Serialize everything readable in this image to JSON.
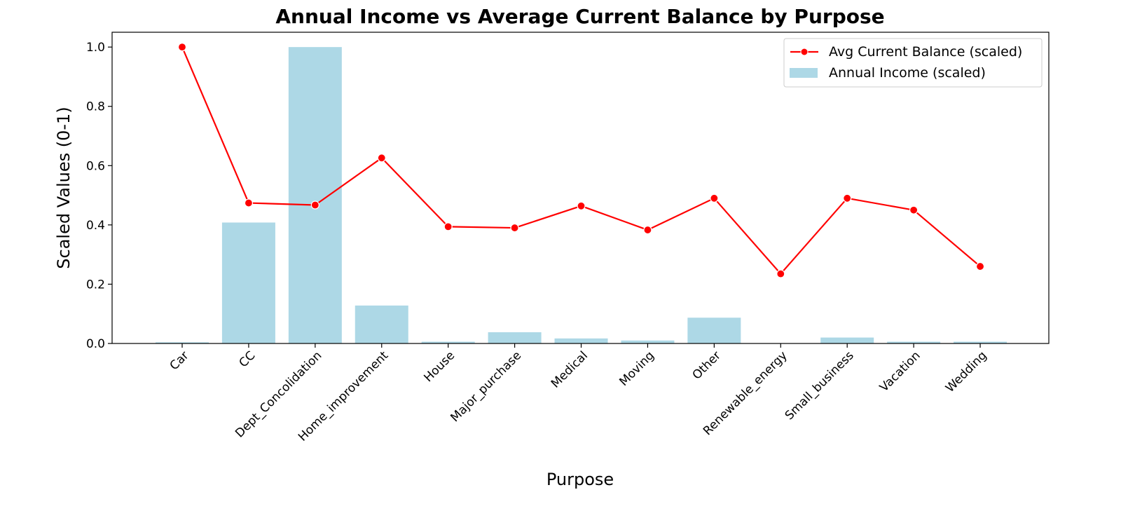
{
  "chart_data": {
    "type": "bar",
    "title": "Annual Income vs Average Current Balance by Purpose",
    "xlabel": "Purpose",
    "ylabel": "Scaled Values (0-1)",
    "ylim": [
      0,
      1.05
    ],
    "yticks": [
      "0.0",
      "0.2",
      "0.4",
      "0.6",
      "0.8",
      "1.0"
    ],
    "ytick_values": [
      0,
      0.2,
      0.4,
      0.6,
      0.8,
      1.0
    ],
    "grid": false,
    "legend_position": "top-right",
    "categories": [
      "Car",
      "CC",
      "Dept_Concolidation",
      "Home_improvement",
      "House",
      "Major_purchase",
      "Medical",
      "Moving",
      "Other",
      "Renewable_energy",
      "Small_business",
      "Vacation",
      "Wedding"
    ],
    "series": [
      {
        "name": "Avg Current Balance (scaled)",
        "type": "line",
        "color": "#ff0000",
        "values": [
          1.0,
          0.474,
          0.467,
          0.626,
          0.394,
          0.39,
          0.464,
          0.383,
          0.49,
          0.235,
          0.49,
          0.45,
          0.26
        ]
      },
      {
        "name": "Annual Income (scaled)",
        "type": "bar",
        "color": "#add8e6",
        "values": [
          0.004,
          0.408,
          1.0,
          0.128,
          0.006,
          0.038,
          0.017,
          0.01,
          0.087,
          0.0,
          0.02,
          0.006,
          0.006
        ]
      }
    ]
  }
}
